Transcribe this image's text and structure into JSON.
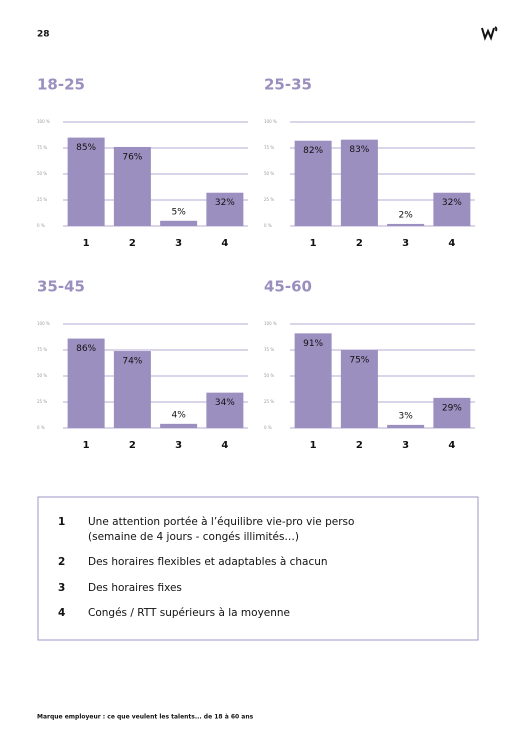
{
  "page_number": "28",
  "chart_data": [
    {
      "type": "bar",
      "title": "18-25",
      "categories": [
        "1",
        "2",
        "3",
        "4"
      ],
      "values": [
        85,
        76,
        5,
        32
      ],
      "value_labels": [
        "85%",
        "76%",
        "5%",
        "32%"
      ],
      "color": "#9b8fc0",
      "ylim": [
        0,
        100
      ],
      "yticks": [
        {
          "value": 0,
          "label": "0 %"
        },
        {
          "value": 25,
          "label": "25 %"
        },
        {
          "value": 50,
          "label": "50 %"
        },
        {
          "value": 75,
          "label": "75 %"
        },
        {
          "value": 100,
          "label": "100 %"
        }
      ],
      "grid": true
    },
    {
      "type": "bar",
      "title": "25-35",
      "categories": [
        "1",
        "2",
        "3",
        "4"
      ],
      "values": [
        82,
        83,
        2,
        32
      ],
      "value_labels": [
        "82%",
        "83%",
        "2%",
        "32%"
      ],
      "color": "#9b8fc0",
      "ylim": [
        0,
        100
      ],
      "yticks": [
        {
          "value": 0,
          "label": "0 %"
        },
        {
          "value": 25,
          "label": "25 %"
        },
        {
          "value": 50,
          "label": "50 %"
        },
        {
          "value": 75,
          "label": "75 %"
        },
        {
          "value": 100,
          "label": "100 %"
        }
      ],
      "grid": true
    },
    {
      "type": "bar",
      "title": "35-45",
      "categories": [
        "1",
        "2",
        "3",
        "4"
      ],
      "values": [
        86,
        74,
        4,
        34
      ],
      "value_labels": [
        "86%",
        "74%",
        "4%",
        "34%"
      ],
      "color": "#9b8fc0",
      "ylim": [
        0,
        100
      ],
      "yticks": [
        {
          "value": 0,
          "label": "0 %"
        },
        {
          "value": 25,
          "label": "25 %"
        },
        {
          "value": 50,
          "label": "50 %"
        },
        {
          "value": 75,
          "label": "75 %"
        },
        {
          "value": 100,
          "label": "100 %"
        }
      ],
      "grid": true
    },
    {
      "type": "bar",
      "title": "45-60",
      "categories": [
        "1",
        "2",
        "3",
        "4"
      ],
      "values": [
        91,
        75,
        3,
        29
      ],
      "value_labels": [
        "91%",
        "75%",
        "3%",
        "29%"
      ],
      "color": "#9b8fc0",
      "ylim": [
        0,
        100
      ],
      "yticks": [
        {
          "value": 0,
          "label": "0 %"
        },
        {
          "value": 25,
          "label": "25 %"
        },
        {
          "value": 50,
          "label": "50 %"
        },
        {
          "value": 75,
          "label": "75 %"
        },
        {
          "value": 100,
          "label": "100 %"
        }
      ],
      "grid": true
    }
  ],
  "legend": {
    "items": [
      {
        "number": "1",
        "lines": [
          "Une attention portée à l’équilibre vie-pro vie perso",
          "(semaine de 4 jours - congés illimités…)"
        ]
      },
      {
        "number": "2",
        "lines": [
          "Des horaires flexibles et adaptables à chacun"
        ]
      },
      {
        "number": "3",
        "lines": [
          "Des horaires fixes"
        ]
      },
      {
        "number": "4",
        "lines": [
          "Congés / RTT supérieurs à la moyenne"
        ]
      }
    ]
  },
  "footer": "Marque employeur : ce que veulent les talents... de 18 à 60 ans"
}
